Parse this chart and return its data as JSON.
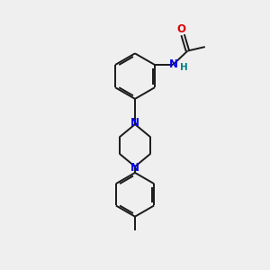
{
  "background_color": "#efefef",
  "bond_color": "#1a1a1a",
  "N_color": "#0000ee",
  "O_color": "#dd0000",
  "H_color": "#008080",
  "line_width": 1.4,
  "dbo": 0.07,
  "figsize": [
    3.0,
    3.0
  ],
  "dpi": 100,
  "xlim": [
    0,
    10
  ],
  "ylim": [
    0,
    10
  ]
}
